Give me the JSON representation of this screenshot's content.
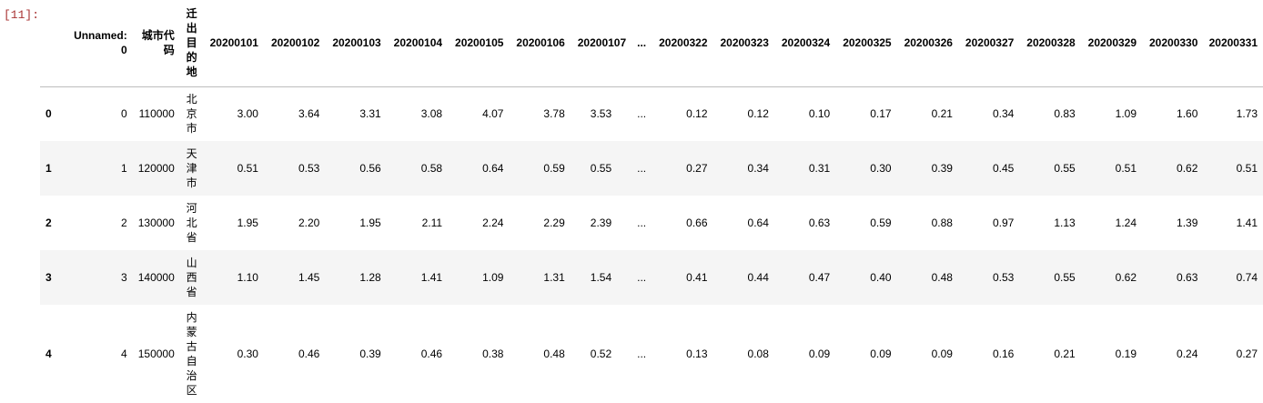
{
  "cell": {
    "prompt": "[11]:"
  },
  "table": {
    "headers": [
      "",
      "Unnamed: 0",
      "城市代码",
      "迁出目的地",
      "20200101",
      "20200102",
      "20200103",
      "20200104",
      "20200105",
      "20200106",
      "20200107",
      "...",
      "20200322",
      "20200323",
      "20200324",
      "20200325",
      "20200326",
      "20200327",
      "20200328",
      "20200329",
      "20200330",
      "20200331"
    ],
    "rows": [
      {
        "index": "0",
        "cells": [
          "0",
          "110000",
          "北京市",
          "3.00",
          "3.64",
          "3.31",
          "3.08",
          "4.07",
          "3.78",
          "3.53",
          "...",
          "0.12",
          "0.12",
          "0.10",
          "0.17",
          "0.21",
          "0.34",
          "0.83",
          "1.09",
          "1.60",
          "1.73"
        ]
      },
      {
        "index": "1",
        "cells": [
          "1",
          "120000",
          "天津市",
          "0.51",
          "0.53",
          "0.56",
          "0.58",
          "0.64",
          "0.59",
          "0.55",
          "...",
          "0.27",
          "0.34",
          "0.31",
          "0.30",
          "0.39",
          "0.45",
          "0.55",
          "0.51",
          "0.62",
          "0.51"
        ]
      },
      {
        "index": "2",
        "cells": [
          "2",
          "130000",
          "河北省",
          "1.95",
          "2.20",
          "1.95",
          "2.11",
          "2.24",
          "2.29",
          "2.39",
          "...",
          "0.66",
          "0.64",
          "0.63",
          "0.59",
          "0.88",
          "0.97",
          "1.13",
          "1.24",
          "1.39",
          "1.41"
        ]
      },
      {
        "index": "3",
        "cells": [
          "3",
          "140000",
          "山西省",
          "1.10",
          "1.45",
          "1.28",
          "1.41",
          "1.09",
          "1.31",
          "1.54",
          "...",
          "0.41",
          "0.44",
          "0.47",
          "0.40",
          "0.48",
          "0.53",
          "0.55",
          "0.62",
          "0.63",
          "0.74"
        ]
      },
      {
        "index": "4",
        "cells": [
          "4",
          "150000",
          "内蒙古自治区",
          "0.30",
          "0.46",
          "0.39",
          "0.46",
          "0.38",
          "0.48",
          "0.52",
          "...",
          "0.13",
          "0.08",
          "0.09",
          "0.09",
          "0.09",
          "0.16",
          "0.21",
          "0.19",
          "0.24",
          "0.27"
        ]
      }
    ]
  }
}
